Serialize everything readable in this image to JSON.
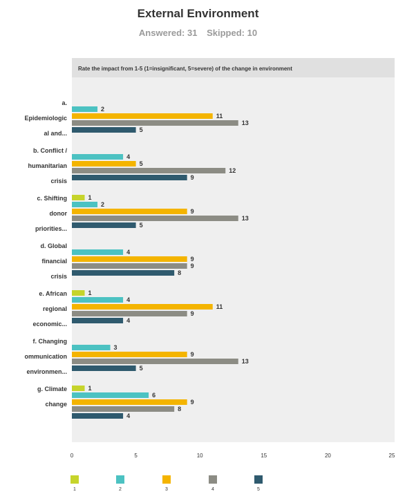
{
  "header": {
    "title": "External Environment",
    "answered": "Answered: 31",
    "skipped": "Skipped: 10"
  },
  "chart_data": {
    "type": "bar",
    "orientation": "horizontal",
    "question": "Rate the impact from 1-5 (1=insignificant, 5=severe) of the change in environment",
    "categories": [
      [
        "a.",
        "Epidemiologic",
        "al and..."
      ],
      [
        "b. Conflict /",
        "humanitarian",
        "crisis"
      ],
      [
        "c. Shifting",
        "donor",
        "priorities..."
      ],
      [
        "d. Global",
        "financial",
        "crisis"
      ],
      [
        "e. African",
        "regional",
        "economic..."
      ],
      [
        "f. Changing",
        "ommunication",
        "environmen..."
      ],
      [
        "g. Climate",
        "change"
      ]
    ],
    "series": [
      {
        "name": "1",
        "color": "#c6d42b",
        "values": [
          0,
          0,
          1,
          0,
          1,
          0,
          1
        ]
      },
      {
        "name": "2",
        "color": "#4cc2c2",
        "values": [
          2,
          4,
          2,
          4,
          4,
          3,
          6
        ]
      },
      {
        "name": "3",
        "color": "#f4b400",
        "values": [
          11,
          5,
          9,
          9,
          11,
          9,
          9
        ]
      },
      {
        "name": "4",
        "color": "#8c8c84",
        "values": [
          13,
          12,
          13,
          9,
          9,
          13,
          8
        ]
      },
      {
        "name": "5",
        "color": "#2f5a6e",
        "values": [
          5,
          9,
          5,
          8,
          4,
          5,
          4
        ]
      }
    ],
    "xlim": [
      0,
      25
    ],
    "xticks": [
      0,
      5,
      10,
      15,
      20,
      25
    ],
    "grid": false,
    "legend_position": "bottom"
  }
}
